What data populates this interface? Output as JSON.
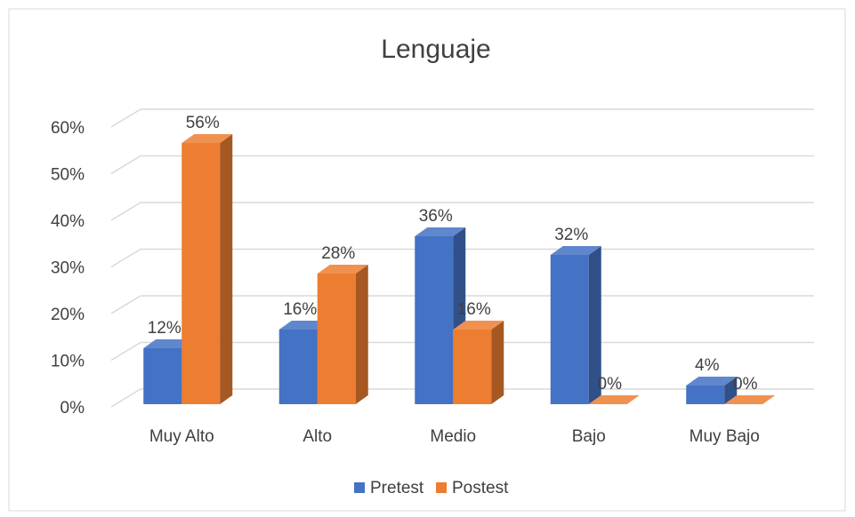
{
  "chart_data": {
    "type": "bar3d",
    "title": "Lenguaje",
    "categories": [
      "Muy Alto",
      "Alto",
      "Medio",
      "Bajo",
      "Muy Bajo"
    ],
    "series": [
      {
        "name": "Pretest",
        "color": "#4472c4",
        "values": [
          12,
          16,
          36,
          32,
          4
        ],
        "value_labels": [
          "12%",
          "16%",
          "36%",
          "32%",
          "4%"
        ]
      },
      {
        "name": "Postest",
        "color": "#ed7d31",
        "values": [
          56,
          28,
          16,
          0,
          0
        ],
        "value_labels": [
          "56%",
          "28%",
          "16%",
          "0%",
          "0%"
        ]
      }
    ],
    "ylim": [
      0,
      60
    ],
    "yticks": [
      {
        "value": 0,
        "label": "0%"
      },
      {
        "value": 10,
        "label": "10%"
      },
      {
        "value": 20,
        "label": "20%"
      },
      {
        "value": 30,
        "label": "30%"
      },
      {
        "value": 40,
        "label": "40%"
      },
      {
        "value": 50,
        "label": "50%"
      },
      {
        "value": 60,
        "label": "60%"
      }
    ],
    "grid": true,
    "legend": "bottom"
  }
}
